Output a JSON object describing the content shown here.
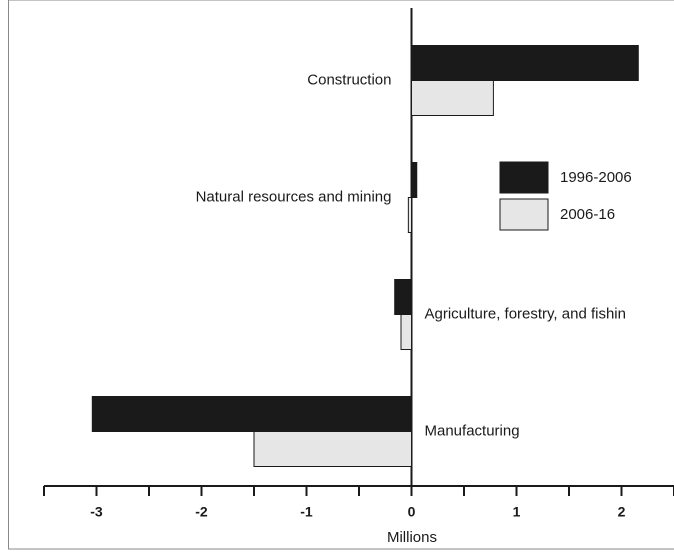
{
  "chart_data": {
    "type": "bar",
    "orientation": "horizontal",
    "categories": [
      "Construction",
      "Natural resources and mining",
      "Agriculture, forestry, and fishin",
      "Manufacturing"
    ],
    "series": [
      {
        "name": "1996-2006",
        "color": "#1a1a1a",
        "values": [
          2.16,
          0.05,
          -0.16,
          -3.04
        ]
      },
      {
        "name": "2006-16",
        "color": "#e6e6e6",
        "values": [
          0.78,
          -0.03,
          -0.1,
          -1.5
        ]
      }
    ],
    "x_label": "Millions",
    "xlim": [
      -3.5,
      2.5
    ],
    "xticks": [
      -3,
      -2,
      -1,
      0,
      1,
      2
    ],
    "minor_xticks": [
      -3.5,
      -2.5,
      -1.5,
      -0.5,
      0.5,
      1.5,
      2.5
    ]
  }
}
